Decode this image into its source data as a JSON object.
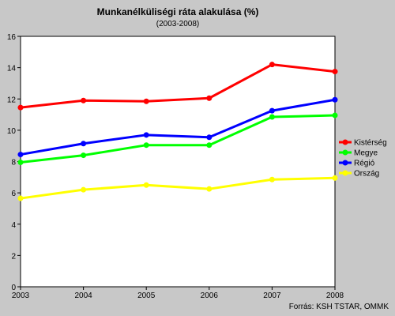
{
  "chart_data": {
    "type": "line",
    "title": "Munkanélküliségi ráta alakulása (%)",
    "subtitle": "(2003-2008)",
    "x": [
      "2003",
      "2004",
      "2005",
      "2006",
      "2007",
      "2008"
    ],
    "ylim": [
      0,
      16
    ],
    "yticks": [
      0,
      2,
      4,
      6,
      8,
      10,
      12,
      14,
      16
    ],
    "grid": false,
    "legend_position": "right",
    "series": [
      {
        "name": "Kistérség",
        "color": "#ff0000",
        "values": [
          11.45,
          11.9,
          11.85,
          12.05,
          14.2,
          13.75
        ]
      },
      {
        "name": "Megye",
        "color": "#00ff00",
        "values": [
          7.95,
          8.4,
          9.05,
          9.05,
          10.85,
          10.95
        ]
      },
      {
        "name": "Régió",
        "color": "#0000ff",
        "values": [
          8.45,
          9.15,
          9.7,
          9.55,
          11.25,
          11.95
        ]
      },
      {
        "name": "Ország",
        "color": "#ffff00",
        "values": [
          5.65,
          6.2,
          6.5,
          6.25,
          6.85,
          6.95
        ]
      }
    ],
    "source": "Forrás: KSH TSTAR, OMMK"
  }
}
